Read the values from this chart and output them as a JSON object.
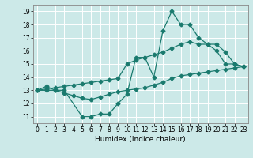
{
  "title": "",
  "xlabel": "Humidex (Indice chaleur)",
  "background_color": "#cce9e8",
  "grid_color": "#ffffff",
  "line_color": "#1a7a6e",
  "xlim": [
    -0.5,
    23.5
  ],
  "ylim": [
    10.5,
    19.5
  ],
  "xticks": [
    0,
    1,
    2,
    3,
    4,
    5,
    6,
    7,
    8,
    9,
    10,
    11,
    12,
    13,
    14,
    15,
    16,
    17,
    18,
    19,
    20,
    21,
    22,
    23
  ],
  "yticks": [
    11,
    12,
    13,
    14,
    15,
    16,
    17,
    18,
    19
  ],
  "line1_x": [
    0,
    1,
    2,
    3,
    5,
    6,
    7,
    8,
    9,
    10,
    11,
    12,
    13,
    14,
    15,
    16,
    17,
    18,
    19,
    20,
    21,
    22,
    23
  ],
  "line1_y": [
    13.0,
    13.3,
    13.0,
    13.0,
    11.0,
    11.0,
    11.2,
    11.2,
    12.0,
    12.7,
    15.5,
    15.5,
    14.0,
    17.5,
    19.0,
    18.0,
    18.0,
    17.0,
    16.5,
    16.0,
    15.0,
    15.0,
    14.8
  ],
  "line2_x": [
    0,
    1,
    2,
    3,
    4,
    5,
    6,
    7,
    8,
    9,
    10,
    11,
    12,
    13,
    14,
    15,
    16,
    17,
    18,
    19,
    20,
    21,
    22,
    23
  ],
  "line2_y": [
    13.0,
    13.1,
    13.2,
    13.3,
    13.4,
    13.5,
    13.6,
    13.7,
    13.8,
    13.9,
    15.0,
    15.3,
    15.5,
    15.7,
    15.9,
    16.2,
    16.5,
    16.7,
    16.5,
    16.5,
    16.5,
    15.9,
    15.0,
    14.8
  ],
  "line3_x": [
    0,
    1,
    2,
    3,
    4,
    5,
    6,
    7,
    8,
    9,
    10,
    11,
    12,
    13,
    14,
    15,
    16,
    17,
    18,
    19,
    20,
    21,
    22,
    23
  ],
  "line3_y": [
    13.0,
    13.0,
    13.0,
    12.8,
    12.6,
    12.4,
    12.3,
    12.5,
    12.7,
    12.9,
    13.0,
    13.1,
    13.2,
    13.4,
    13.6,
    13.9,
    14.1,
    14.2,
    14.3,
    14.4,
    14.5,
    14.6,
    14.7,
    14.8
  ],
  "marker_size": 2.5,
  "line_width": 0.9,
  "tick_fontsize": 5.5,
  "xlabel_fontsize": 6.5
}
